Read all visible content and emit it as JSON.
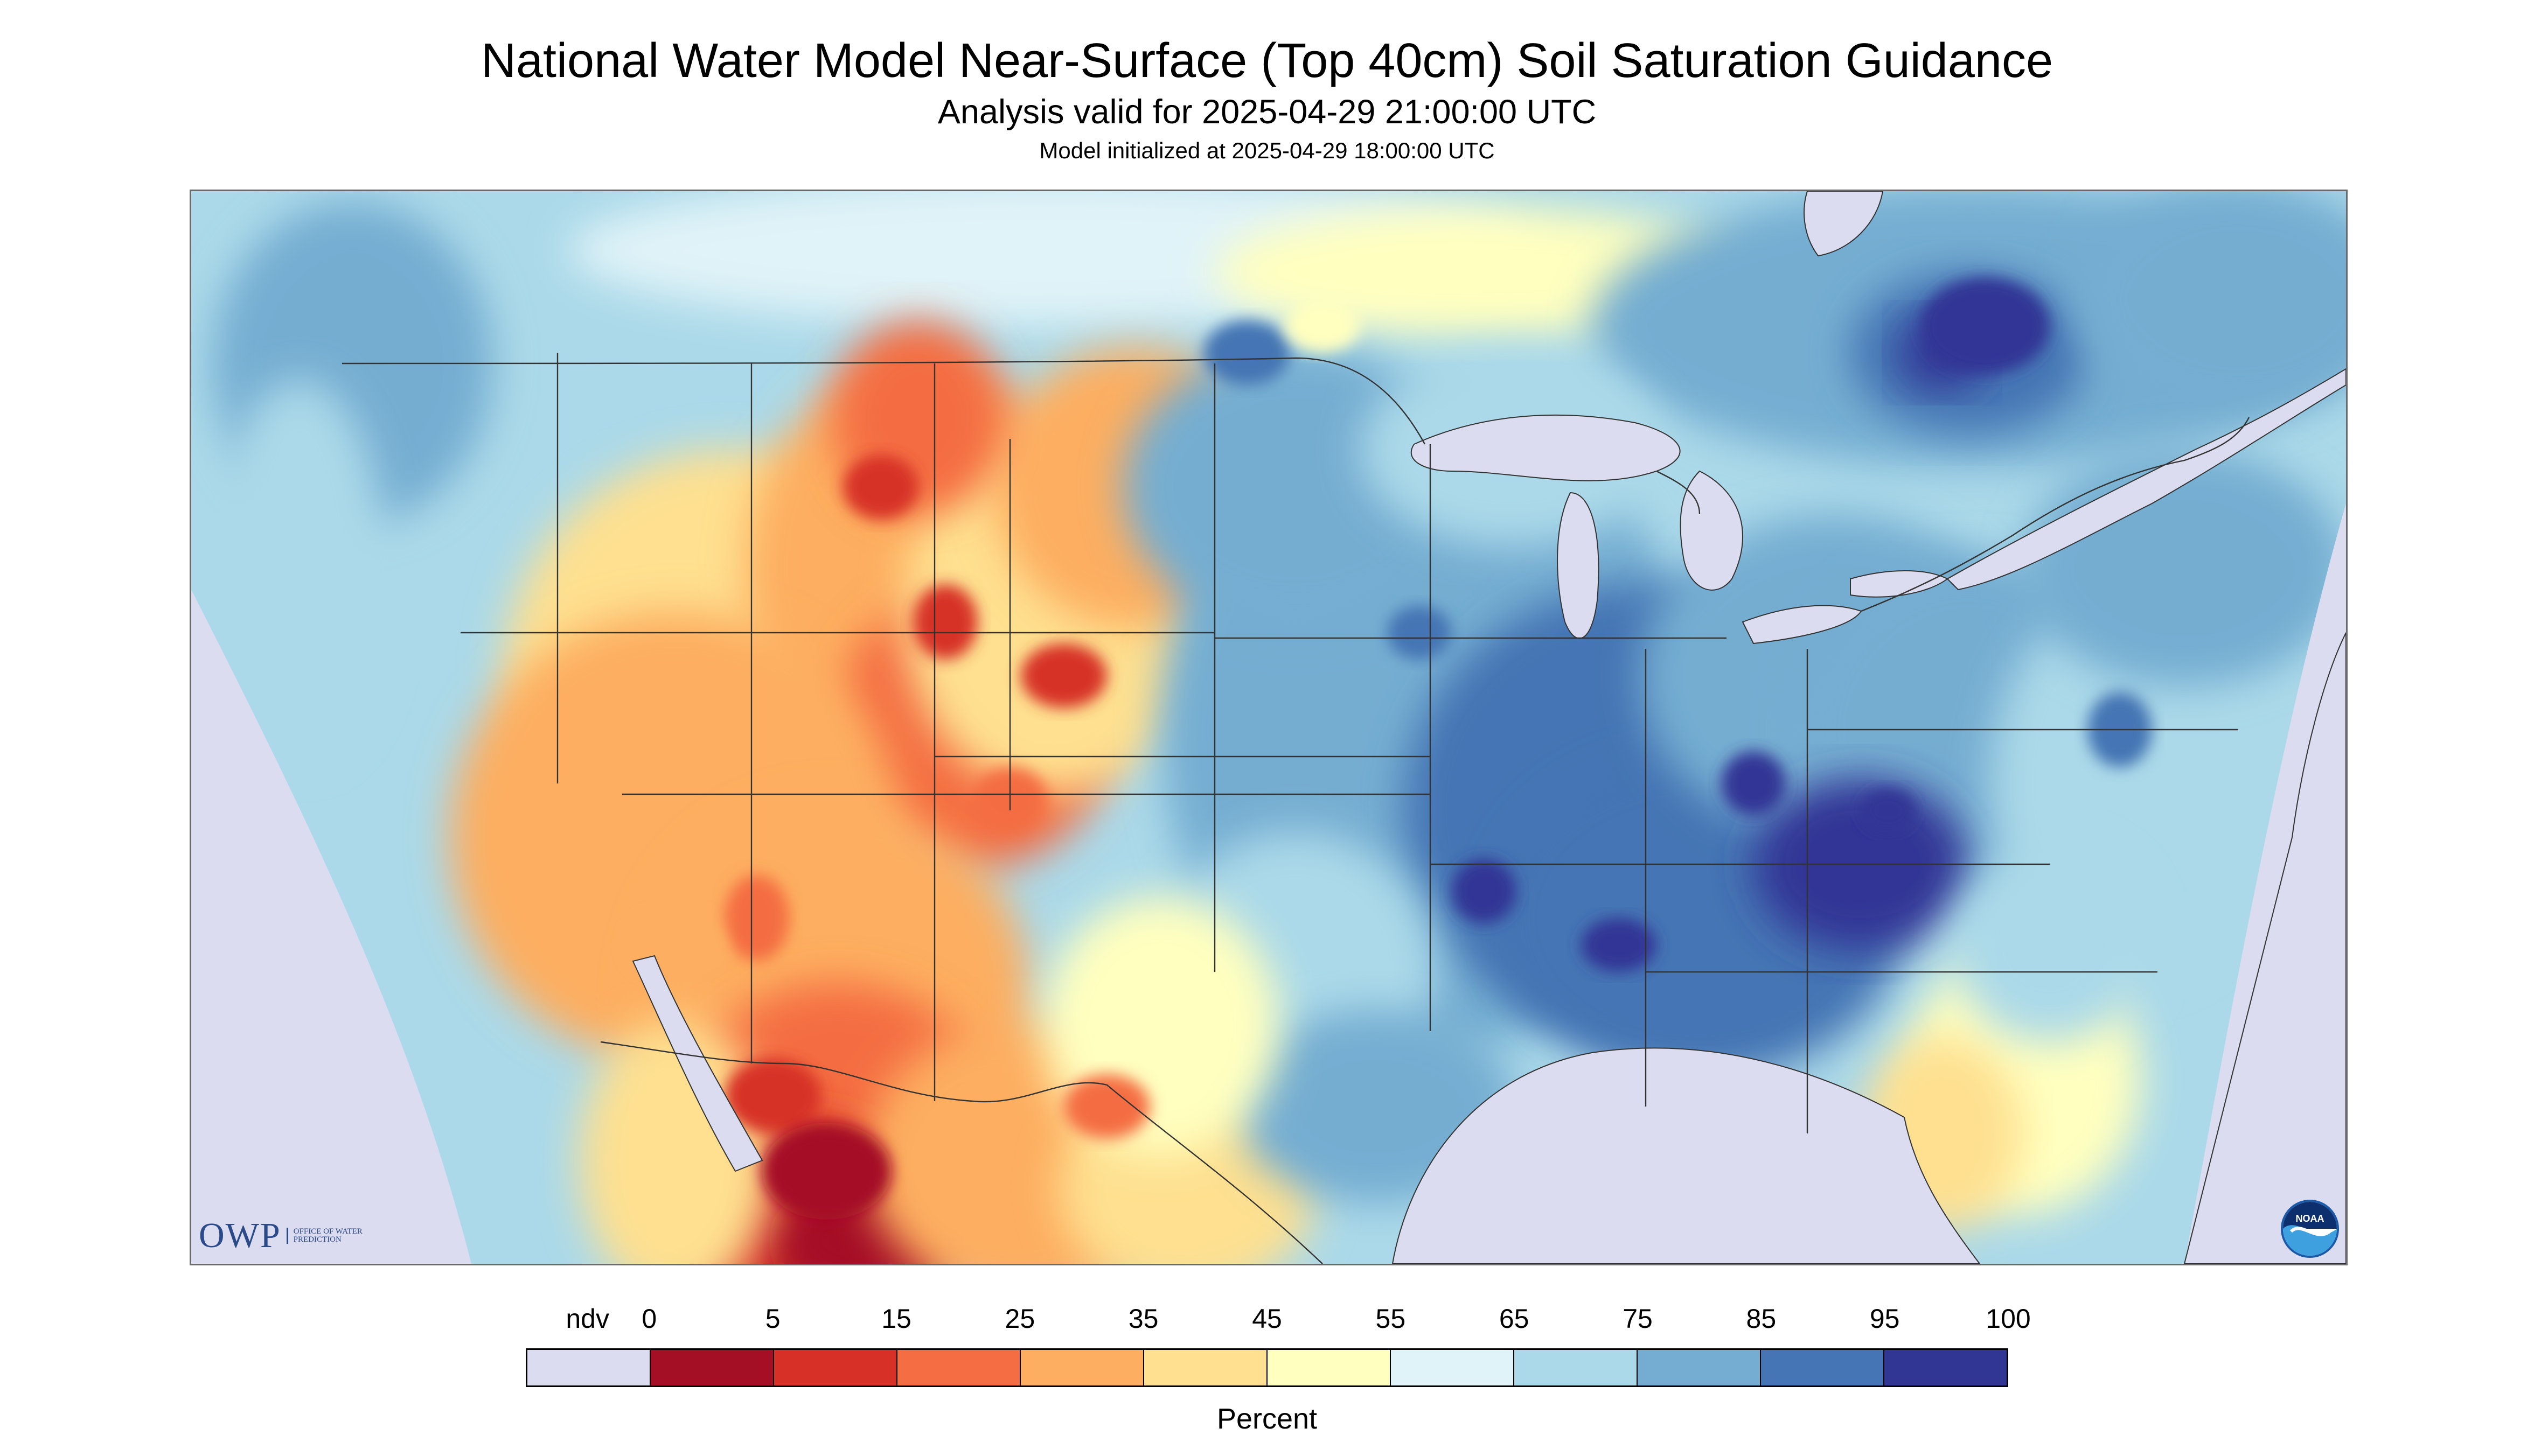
{
  "title": "National Water Model Near-Surface (Top 40cm) Soil Saturation Guidance",
  "subtitle": "Analysis valid for 2025-04-29 21:00:00 UTC",
  "init_line": "Model initialized at 2025-04-29 18:00:00 UTC",
  "logos": {
    "owp_text": "OWP",
    "owp_tagline": "Office of Water Prediction",
    "noaa_text": "NOAA"
  },
  "legend": {
    "unit": "Percent",
    "labels": [
      "ndv",
      "0",
      "5",
      "15",
      "25",
      "35",
      "45",
      "55",
      "65",
      "75",
      "85",
      "95",
      "100"
    ],
    "colors": [
      "#dcdcf0",
      "#a50f26",
      "#d73027",
      "#f46d43",
      "#fdae61",
      "#fee090",
      "#ffffbf",
      "#e0f3f8",
      "#abd9e9",
      "#74add1",
      "#4575b4",
      "#313695"
    ]
  },
  "colors": {
    "no_data": "#dcdcf0",
    "water": "#dcdcf0",
    "boundary_lines": "#333333",
    "owp_brand": "#2b4a8a",
    "noaa_brand": "#1a5aa8"
  }
}
